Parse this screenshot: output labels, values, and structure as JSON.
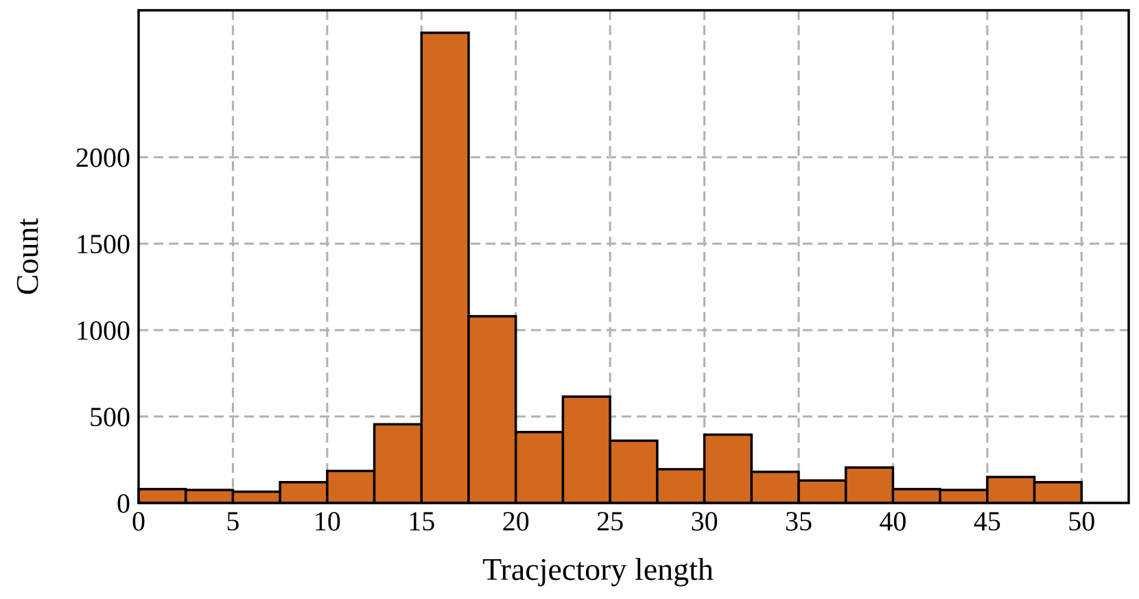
{
  "chart_data": {
    "type": "bar",
    "subtype": "histogram",
    "xlabel": "Tracjectory length",
    "ylabel": "Count",
    "xlim": [
      0,
      52.5
    ],
    "ylim": [
      0,
      2850
    ],
    "x_ticks": [
      0,
      5,
      10,
      15,
      20,
      25,
      30,
      35,
      40,
      45,
      50
    ],
    "y_ticks": [
      0,
      500,
      1000,
      1500,
      2000
    ],
    "grid": true,
    "bar_color": "#d2691e",
    "bin_width": 2.5,
    "bins": [
      {
        "start": 0,
        "end": 2.5,
        "value": 80
      },
      {
        "start": 2.5,
        "end": 5,
        "value": 75
      },
      {
        "start": 5,
        "end": 7.5,
        "value": 65
      },
      {
        "start": 7.5,
        "end": 10,
        "value": 120
      },
      {
        "start": 10,
        "end": 12.5,
        "value": 185
      },
      {
        "start": 12.5,
        "end": 15,
        "value": 455
      },
      {
        "start": 15,
        "end": 17.5,
        "value": 2720
      },
      {
        "start": 17.5,
        "end": 20,
        "value": 1080
      },
      {
        "start": 20,
        "end": 22.5,
        "value": 410
      },
      {
        "start": 22.5,
        "end": 25,
        "value": 615
      },
      {
        "start": 25,
        "end": 27.5,
        "value": 360
      },
      {
        "start": 27.5,
        "end": 30,
        "value": 195
      },
      {
        "start": 30,
        "end": 32.5,
        "value": 395
      },
      {
        "start": 32.5,
        "end": 35,
        "value": 180
      },
      {
        "start": 35,
        "end": 37.5,
        "value": 130
      },
      {
        "start": 37.5,
        "end": 40,
        "value": 205
      },
      {
        "start": 40,
        "end": 42.5,
        "value": 80
      },
      {
        "start": 42.5,
        "end": 45,
        "value": 75
      },
      {
        "start": 45,
        "end": 47.5,
        "value": 150
      },
      {
        "start": 47.5,
        "end": 50,
        "value": 120
      }
    ]
  }
}
